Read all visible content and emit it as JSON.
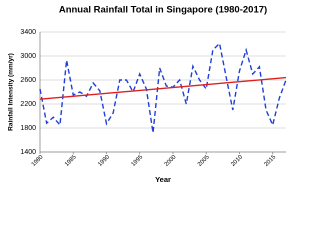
{
  "chart_data": {
    "type": "line",
    "title": "Annual Rainfall Total in Singapore (1980-2017)",
    "xlabel": "Year",
    "ylabel": "Rainfall Intensity (mm/yr)",
    "x": [
      1980,
      1981,
      1982,
      1983,
      1984,
      1985,
      1986,
      1987,
      1988,
      1989,
      1990,
      1991,
      1992,
      1993,
      1994,
      1995,
      1996,
      1997,
      1998,
      1999,
      2000,
      2001,
      2002,
      2003,
      2004,
      2005,
      2006,
      2007,
      2008,
      2009,
      2010,
      2011,
      2012,
      2013,
      2014,
      2015,
      2016,
      2017
    ],
    "series": [
      {
        "color": "#1f3fd8",
        "dashed": true,
        "values": [
          2450,
          1880,
          1980,
          1850,
          2930,
          2350,
          2400,
          2330,
          2550,
          2420,
          1870,
          2050,
          2600,
          2600,
          2400,
          2700,
          2450,
          1720,
          2800,
          2500,
          2480,
          2600,
          2200,
          2830,
          2600,
          2450,
          3100,
          3210,
          2650,
          2100,
          2750,
          3100,
          2700,
          2820,
          2100,
          1850,
          2300,
          2600
        ]
      }
    ],
    "trend": {
      "x": [
        1980,
        2017
      ],
      "values": [
        2280,
        2640
      ],
      "color": "#e02020"
    },
    "xlim": [
      1980,
      2017
    ],
    "xticks": [
      1980,
      1985,
      1990,
      1995,
      2000,
      2005,
      2010,
      2015
    ],
    "ylim": [
      1400,
      3400
    ],
    "yticks": [
      1400,
      1800,
      2200,
      2600,
      3000,
      3400
    ],
    "grid": true
  }
}
